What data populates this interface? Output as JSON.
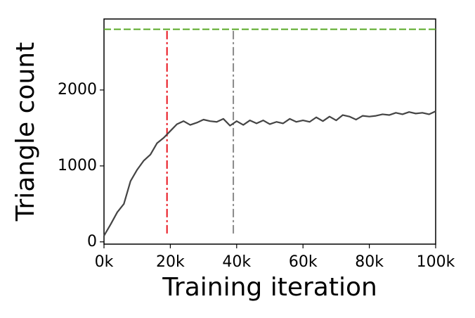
{
  "chart_data": {
    "type": "line",
    "xlabel": "Training iteration",
    "ylabel": "Triangle count",
    "x": [
      0,
      2000,
      4000,
      6000,
      8000,
      10000,
      12000,
      14000,
      16000,
      18000,
      20000,
      22000,
      24000,
      26000,
      28000,
      30000,
      32000,
      34000,
      36000,
      38000,
      40000,
      42000,
      44000,
      46000,
      48000,
      50000,
      52000,
      54000,
      56000,
      58000,
      60000,
      62000,
      64000,
      66000,
      68000,
      70000,
      72000,
      74000,
      76000,
      78000,
      80000,
      82000,
      84000,
      86000,
      88000,
      90000,
      92000,
      94000,
      96000,
      98000,
      100000
    ],
    "series": [
      {
        "color": "#444444",
        "values": [
          80,
          230,
          390,
          500,
          800,
          950,
          1070,
          1150,
          1300,
          1370,
          1460,
          1550,
          1590,
          1540,
          1570,
          1610,
          1590,
          1580,
          1620,
          1530,
          1590,
          1540,
          1600,
          1560,
          1600,
          1550,
          1580,
          1560,
          1620,
          1580,
          1600,
          1580,
          1640,
          1590,
          1650,
          1600,
          1670,
          1650,
          1610,
          1660,
          1650,
          1660,
          1680,
          1670,
          1700,
          1680,
          1710,
          1690,
          1700,
          1680,
          1720
        ]
      }
    ],
    "hlines": [
      {
        "value": 2800,
        "color": "#5aaa28",
        "style": "dashed"
      }
    ],
    "vlines": [
      {
        "value": 19000,
        "ymin": 110,
        "ymax": 2780,
        "color": "#e8141e",
        "style": "dashdot"
      },
      {
        "value": 39000,
        "ymin": 110,
        "ymax": 2780,
        "color": "#888888",
        "style": "dashdot"
      }
    ],
    "xlim": [
      0,
      100000
    ],
    "ylim": [
      -30,
      2935
    ],
    "xticks": [
      {
        "value": 0,
        "label": "0k"
      },
      {
        "value": 20000,
        "label": "20k"
      },
      {
        "value": 40000,
        "label": "40k"
      },
      {
        "value": 60000,
        "label": "60k"
      },
      {
        "value": 80000,
        "label": "80k"
      },
      {
        "value": 100000,
        "label": "100k"
      }
    ],
    "yticks": [
      0,
      1000,
      2000
    ],
    "grid": false
  }
}
